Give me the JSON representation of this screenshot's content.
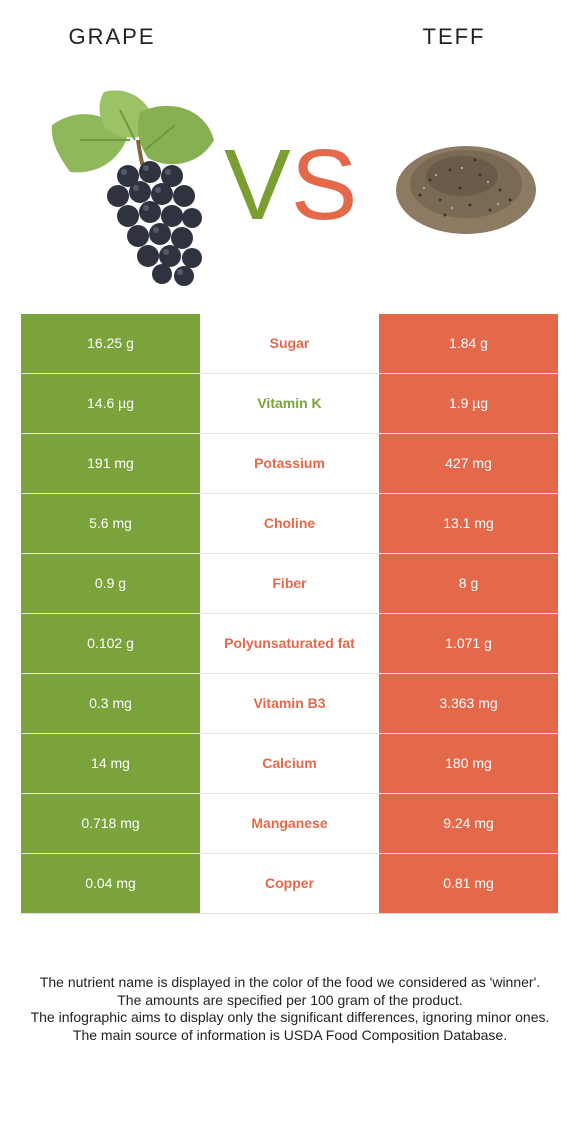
{
  "header": {
    "left_food": "GRAPE",
    "right_food": "TEFF",
    "vs_v": "V",
    "vs_s": "S"
  },
  "colors": {
    "winner_left": "#7aa33b",
    "winner_right": "#e4694a",
    "vs_v": "#7a9e30",
    "vs_s": "#e4694a"
  },
  "icons": {
    "left": "grape-bunch-icon",
    "right": "teff-grain-pile-icon"
  },
  "rows": [
    {
      "left": "16.25 g",
      "nutrient": "Sugar",
      "right": "1.84 g",
      "winner": "right"
    },
    {
      "left": "14.6 µg",
      "nutrient": "Vitamin K",
      "right": "1.9 µg",
      "winner": "left"
    },
    {
      "left": "191 mg",
      "nutrient": "Potassium",
      "right": "427 mg",
      "winner": "right"
    },
    {
      "left": "5.6 mg",
      "nutrient": "Choline",
      "right": "13.1 mg",
      "winner": "right"
    },
    {
      "left": "0.9 g",
      "nutrient": "Fiber",
      "right": "8 g",
      "winner": "right"
    },
    {
      "left": "0.102 g",
      "nutrient": "Polyunsaturated fat",
      "right": "1.071 g",
      "winner": "right"
    },
    {
      "left": "0.3 mg",
      "nutrient": "Vitamin B3",
      "right": "3.363 mg",
      "winner": "right"
    },
    {
      "left": "14 mg",
      "nutrient": "Calcium",
      "right": "180 mg",
      "winner": "right"
    },
    {
      "left": "0.718 mg",
      "nutrient": "Manganese",
      "right": "9.24 mg",
      "winner": "right"
    },
    {
      "left": "0.04 mg",
      "nutrient": "Copper",
      "right": "0.81 mg",
      "winner": "right"
    }
  ],
  "footnote": [
    "The nutrient name is displayed in the color of the food we considered as 'winner'.",
    "The amounts are specified per 100 gram of the product.",
    "The infographic aims to display only the significant differences, ignoring minor ones.",
    "The main source of information is USDA Food Composition Database."
  ]
}
